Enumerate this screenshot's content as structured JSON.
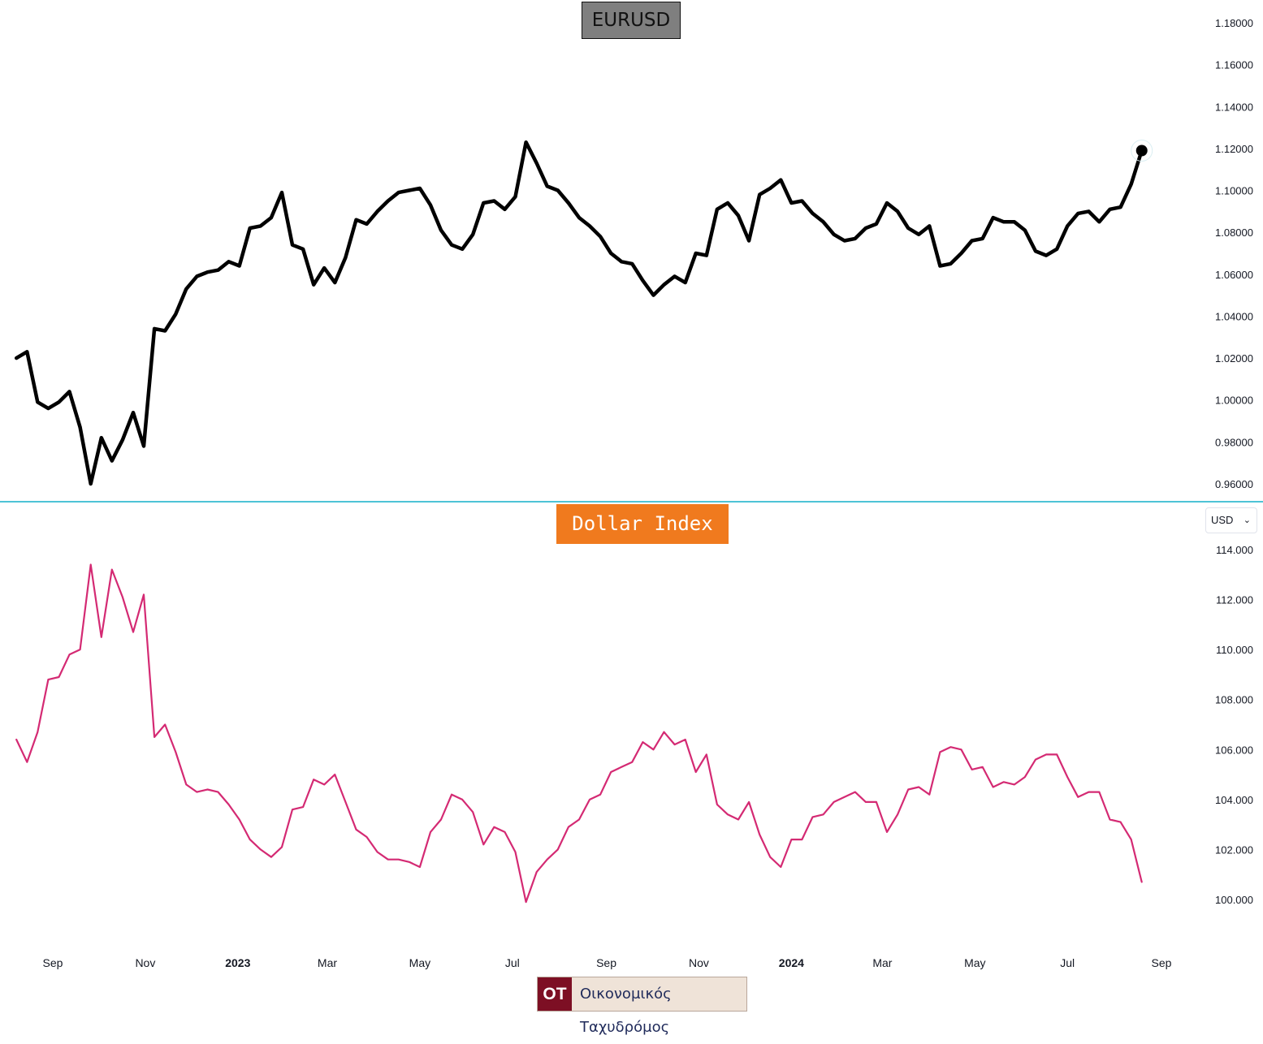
{
  "panels": {
    "top": {
      "title": "EURUSD"
    },
    "bottom": {
      "title": "Dollar Index",
      "currency_selector": "USD"
    }
  },
  "logo": {
    "mark": "OT",
    "name": "Οικονομικός Ταχυδρόμος"
  },
  "colors": {
    "eurusd_line": "#000000",
    "dxy_line": "#d42a73",
    "separator": "#4ec3d6",
    "eurusd_title_bg": "#7f7f7f",
    "dxy_title_bg": "#f07a1e",
    "logo_mark_bg": "#7d0f24"
  },
  "chart_data": [
    {
      "type": "line",
      "title": "EURUSD",
      "series": [
        {
          "name": "EURUSD",
          "points": [
            [
              "2022-08-08",
              1.02
            ],
            [
              "2022-08-15",
              1.023
            ],
            [
              "2022-08-22",
              0.999
            ],
            [
              "2022-08-29",
              0.996
            ],
            [
              "2022-09-05",
              0.999
            ],
            [
              "2022-09-12",
              1.004
            ],
            [
              "2022-09-19",
              0.987
            ],
            [
              "2022-09-26",
              0.96
            ],
            [
              "2022-10-03",
              0.982
            ],
            [
              "2022-10-10",
              0.971
            ],
            [
              "2022-10-17",
              0.981
            ],
            [
              "2022-10-24",
              0.994
            ],
            [
              "2022-10-31",
              0.978
            ],
            [
              "2022-11-07",
              1.034
            ],
            [
              "2022-11-14",
              1.033
            ],
            [
              "2022-11-21",
              1.041
            ],
            [
              "2022-11-28",
              1.053
            ],
            [
              "2022-12-05",
              1.059
            ],
            [
              "2022-12-12",
              1.061
            ],
            [
              "2022-12-19",
              1.062
            ],
            [
              "2022-12-26",
              1.066
            ],
            [
              "2023-01-02",
              1.064
            ],
            [
              "2023-01-09",
              1.082
            ],
            [
              "2023-01-16",
              1.083
            ],
            [
              "2023-01-23",
              1.087
            ],
            [
              "2023-01-30",
              1.099
            ],
            [
              "2023-02-06",
              1.074
            ],
            [
              "2023-02-13",
              1.072
            ],
            [
              "2023-02-20",
              1.055
            ],
            [
              "2023-02-27",
              1.063
            ],
            [
              "2023-03-06",
              1.056
            ],
            [
              "2023-03-13",
              1.068
            ],
            [
              "2023-03-20",
              1.086
            ],
            [
              "2023-03-27",
              1.084
            ],
            [
              "2023-04-03",
              1.09
            ],
            [
              "2023-04-10",
              1.095
            ],
            [
              "2023-04-17",
              1.099
            ],
            [
              "2023-04-24",
              1.1
            ],
            [
              "2023-05-01",
              1.101
            ],
            [
              "2023-05-08",
              1.093
            ],
            [
              "2023-05-15",
              1.081
            ],
            [
              "2023-05-22",
              1.074
            ],
            [
              "2023-05-29",
              1.072
            ],
            [
              "2023-06-05",
              1.079
            ],
            [
              "2023-06-12",
              1.094
            ],
            [
              "2023-06-19",
              1.095
            ],
            [
              "2023-06-26",
              1.091
            ],
            [
              "2023-07-03",
              1.097
            ],
            [
              "2023-07-10",
              1.123
            ],
            [
              "2023-07-17",
              1.113
            ],
            [
              "2023-07-24",
              1.102
            ],
            [
              "2023-07-31",
              1.1
            ],
            [
              "2023-08-07",
              1.094
            ],
            [
              "2023-08-14",
              1.087
            ],
            [
              "2023-08-21",
              1.083
            ],
            [
              "2023-08-28",
              1.078
            ],
            [
              "2023-09-04",
              1.07
            ],
            [
              "2023-09-11",
              1.066
            ],
            [
              "2023-09-18",
              1.065
            ],
            [
              "2023-09-25",
              1.057
            ],
            [
              "2023-10-02",
              1.05
            ],
            [
              "2023-10-09",
              1.055
            ],
            [
              "2023-10-16",
              1.059
            ],
            [
              "2023-10-23",
              1.056
            ],
            [
              "2023-10-30",
              1.07
            ],
            [
              "2023-11-06",
              1.069
            ],
            [
              "2023-11-13",
              1.091
            ],
            [
              "2023-11-20",
              1.094
            ],
            [
              "2023-11-27",
              1.088
            ],
            [
              "2023-12-04",
              1.076
            ],
            [
              "2023-12-11",
              1.098
            ],
            [
              "2023-12-18",
              1.101
            ],
            [
              "2023-12-25",
              1.105
            ],
            [
              "2024-01-01",
              1.094
            ],
            [
              "2024-01-08",
              1.095
            ],
            [
              "2024-01-15",
              1.089
            ],
            [
              "2024-01-22",
              1.085
            ],
            [
              "2024-01-29",
              1.079
            ],
            [
              "2024-02-05",
              1.076
            ],
            [
              "2024-02-12",
              1.077
            ],
            [
              "2024-02-19",
              1.082
            ],
            [
              "2024-02-26",
              1.084
            ],
            [
              "2024-03-04",
              1.094
            ],
            [
              "2024-03-11",
              1.09
            ],
            [
              "2024-03-18",
              1.082
            ],
            [
              "2024-03-25",
              1.079
            ],
            [
              "2024-04-01",
              1.083
            ],
            [
              "2024-04-08",
              1.064
            ],
            [
              "2024-04-15",
              1.065
            ],
            [
              "2024-04-22",
              1.07
            ],
            [
              "2024-04-29",
              1.076
            ],
            [
              "2024-05-06",
              1.077
            ],
            [
              "2024-05-13",
              1.087
            ],
            [
              "2024-05-20",
              1.085
            ],
            [
              "2024-05-27",
              1.085
            ],
            [
              "2024-06-03",
              1.081
            ],
            [
              "2024-06-10",
              1.071
            ],
            [
              "2024-06-17",
              1.069
            ],
            [
              "2024-06-24",
              1.072
            ],
            [
              "2024-07-01",
              1.083
            ],
            [
              "2024-07-08",
              1.089
            ],
            [
              "2024-07-15",
              1.09
            ],
            [
              "2024-07-22",
              1.085
            ],
            [
              "2024-07-29",
              1.091
            ],
            [
              "2024-08-05",
              1.092
            ],
            [
              "2024-08-12",
              1.103
            ],
            [
              "2024-08-19",
              1.119
            ]
          ]
        }
      ],
      "y_ticks": [
        "0.96000",
        "0.98000",
        "1.00000",
        "1.02000",
        "1.04000",
        "1.06000",
        "1.08000",
        "1.10000",
        "1.12000",
        "1.14000",
        "1.16000",
        "1.18000"
      ],
      "ylim": [
        0.96,
        1.18
      ],
      "last_point_marker": true
    },
    {
      "type": "line",
      "title": "Dollar Index",
      "series": [
        {
          "name": "Dollar Index",
          "points": [
            [
              "2022-08-08",
              106.4
            ],
            [
              "2022-08-15",
              105.5
            ],
            [
              "2022-08-22",
              106.7
            ],
            [
              "2022-08-29",
              108.8
            ],
            [
              "2022-09-05",
              108.9
            ],
            [
              "2022-09-12",
              109.8
            ],
            [
              "2022-09-19",
              110.0
            ],
            [
              "2022-09-26",
              113.4
            ],
            [
              "2022-10-03",
              110.5
            ],
            [
              "2022-10-10",
              113.2
            ],
            [
              "2022-10-17",
              112.1
            ],
            [
              "2022-10-24",
              110.7
            ],
            [
              "2022-10-31",
              112.2
            ],
            [
              "2022-11-07",
              106.5
            ],
            [
              "2022-11-14",
              107.0
            ],
            [
              "2022-11-21",
              105.9
            ],
            [
              "2022-11-28",
              104.6
            ],
            [
              "2022-12-05",
              104.3
            ],
            [
              "2022-12-12",
              104.4
            ],
            [
              "2022-12-19",
              104.3
            ],
            [
              "2022-12-26",
              103.8
            ],
            [
              "2023-01-02",
              103.2
            ],
            [
              "2023-01-09",
              102.4
            ],
            [
              "2023-01-16",
              102.0
            ],
            [
              "2023-01-23",
              101.7
            ],
            [
              "2023-01-30",
              102.1
            ],
            [
              "2023-02-06",
              103.6
            ],
            [
              "2023-02-13",
              103.7
            ],
            [
              "2023-02-20",
              104.8
            ],
            [
              "2023-02-27",
              104.6
            ],
            [
              "2023-03-06",
              105.0
            ],
            [
              "2023-03-13",
              103.9
            ],
            [
              "2023-03-20",
              102.8
            ],
            [
              "2023-03-27",
              102.5
            ],
            [
              "2023-04-03",
              101.9
            ],
            [
              "2023-04-10",
              101.6
            ],
            [
              "2023-04-17",
              101.6
            ],
            [
              "2023-04-24",
              101.5
            ],
            [
              "2023-05-01",
              101.3
            ],
            [
              "2023-05-08",
              102.7
            ],
            [
              "2023-05-15",
              103.2
            ],
            [
              "2023-05-22",
              104.2
            ],
            [
              "2023-05-29",
              104.0
            ],
            [
              "2023-06-05",
              103.5
            ],
            [
              "2023-06-12",
              102.2
            ],
            [
              "2023-06-19",
              102.9
            ],
            [
              "2023-06-26",
              102.7
            ],
            [
              "2023-07-03",
              101.9
            ],
            [
              "2023-07-10",
              99.9
            ],
            [
              "2023-07-17",
              101.1
            ],
            [
              "2023-07-24",
              101.6
            ],
            [
              "2023-07-31",
              102.0
            ],
            [
              "2023-08-07",
              102.9
            ],
            [
              "2023-08-14",
              103.2
            ],
            [
              "2023-08-21",
              104.0
            ],
            [
              "2023-08-28",
              104.2
            ],
            [
              "2023-09-04",
              105.1
            ],
            [
              "2023-09-11",
              105.3
            ],
            [
              "2023-09-18",
              105.5
            ],
            [
              "2023-09-25",
              106.3
            ],
            [
              "2023-10-02",
              106.0
            ],
            [
              "2023-10-09",
              106.7
            ],
            [
              "2023-10-16",
              106.2
            ],
            [
              "2023-10-23",
              106.4
            ],
            [
              "2023-10-30",
              105.1
            ],
            [
              "2023-11-06",
              105.8
            ],
            [
              "2023-11-13",
              103.8
            ],
            [
              "2023-11-20",
              103.4
            ],
            [
              "2023-11-27",
              103.2
            ],
            [
              "2023-12-04",
              103.9
            ],
            [
              "2023-12-11",
              102.6
            ],
            [
              "2023-12-18",
              101.7
            ],
            [
              "2023-12-25",
              101.3
            ],
            [
              "2024-01-01",
              102.4
            ],
            [
              "2024-01-08",
              102.4
            ],
            [
              "2024-01-15",
              103.3
            ],
            [
              "2024-01-22",
              103.4
            ],
            [
              "2024-01-29",
              103.9
            ],
            [
              "2024-02-05",
              104.1
            ],
            [
              "2024-02-12",
              104.3
            ],
            [
              "2024-02-19",
              103.9
            ],
            [
              "2024-02-26",
              103.9
            ],
            [
              "2024-03-04",
              102.7
            ],
            [
              "2024-03-11",
              103.4
            ],
            [
              "2024-03-18",
              104.4
            ],
            [
              "2024-03-25",
              104.5
            ],
            [
              "2024-04-01",
              104.2
            ],
            [
              "2024-04-08",
              105.9
            ],
            [
              "2024-04-15",
              106.1
            ],
            [
              "2024-04-22",
              106.0
            ],
            [
              "2024-04-29",
              105.2
            ],
            [
              "2024-05-06",
              105.3
            ],
            [
              "2024-05-13",
              104.5
            ],
            [
              "2024-05-20",
              104.7
            ],
            [
              "2024-05-27",
              104.6
            ],
            [
              "2024-06-03",
              104.9
            ],
            [
              "2024-06-10",
              105.6
            ],
            [
              "2024-06-17",
              105.8
            ],
            [
              "2024-06-24",
              105.8
            ],
            [
              "2024-07-01",
              104.9
            ],
            [
              "2024-07-08",
              104.1
            ],
            [
              "2024-07-15",
              104.3
            ],
            [
              "2024-07-22",
              104.3
            ],
            [
              "2024-07-29",
              103.2
            ],
            [
              "2024-08-05",
              103.1
            ],
            [
              "2024-08-12",
              102.4
            ],
            [
              "2024-08-19",
              100.7
            ]
          ]
        }
      ],
      "y_ticks": [
        "100.000",
        "102.000",
        "104.000",
        "106.000",
        "108.000",
        "110.000",
        "112.000",
        "114.000"
      ],
      "ylim": [
        100.0,
        114.0
      ]
    }
  ],
  "x_axis": {
    "labels": [
      {
        "text": "Sep",
        "date": "2022-09-01"
      },
      {
        "text": "Nov",
        "date": "2022-11-01"
      },
      {
        "text": "2023",
        "date": "2023-01-01",
        "bold": true
      },
      {
        "text": "Mar",
        "date": "2023-03-01"
      },
      {
        "text": "May",
        "date": "2023-05-01"
      },
      {
        "text": "Jul",
        "date": "2023-07-01"
      },
      {
        "text": "Sep",
        "date": "2023-09-01"
      },
      {
        "text": "Nov",
        "date": "2023-11-01"
      },
      {
        "text": "2024",
        "date": "2024-01-01",
        "bold": true
      },
      {
        "text": "Mar",
        "date": "2024-03-01"
      },
      {
        "text": "May",
        "date": "2024-05-01"
      },
      {
        "text": "Jul",
        "date": "2024-07-01"
      },
      {
        "text": "Sep",
        "date": "2024-09-01"
      }
    ]
  }
}
